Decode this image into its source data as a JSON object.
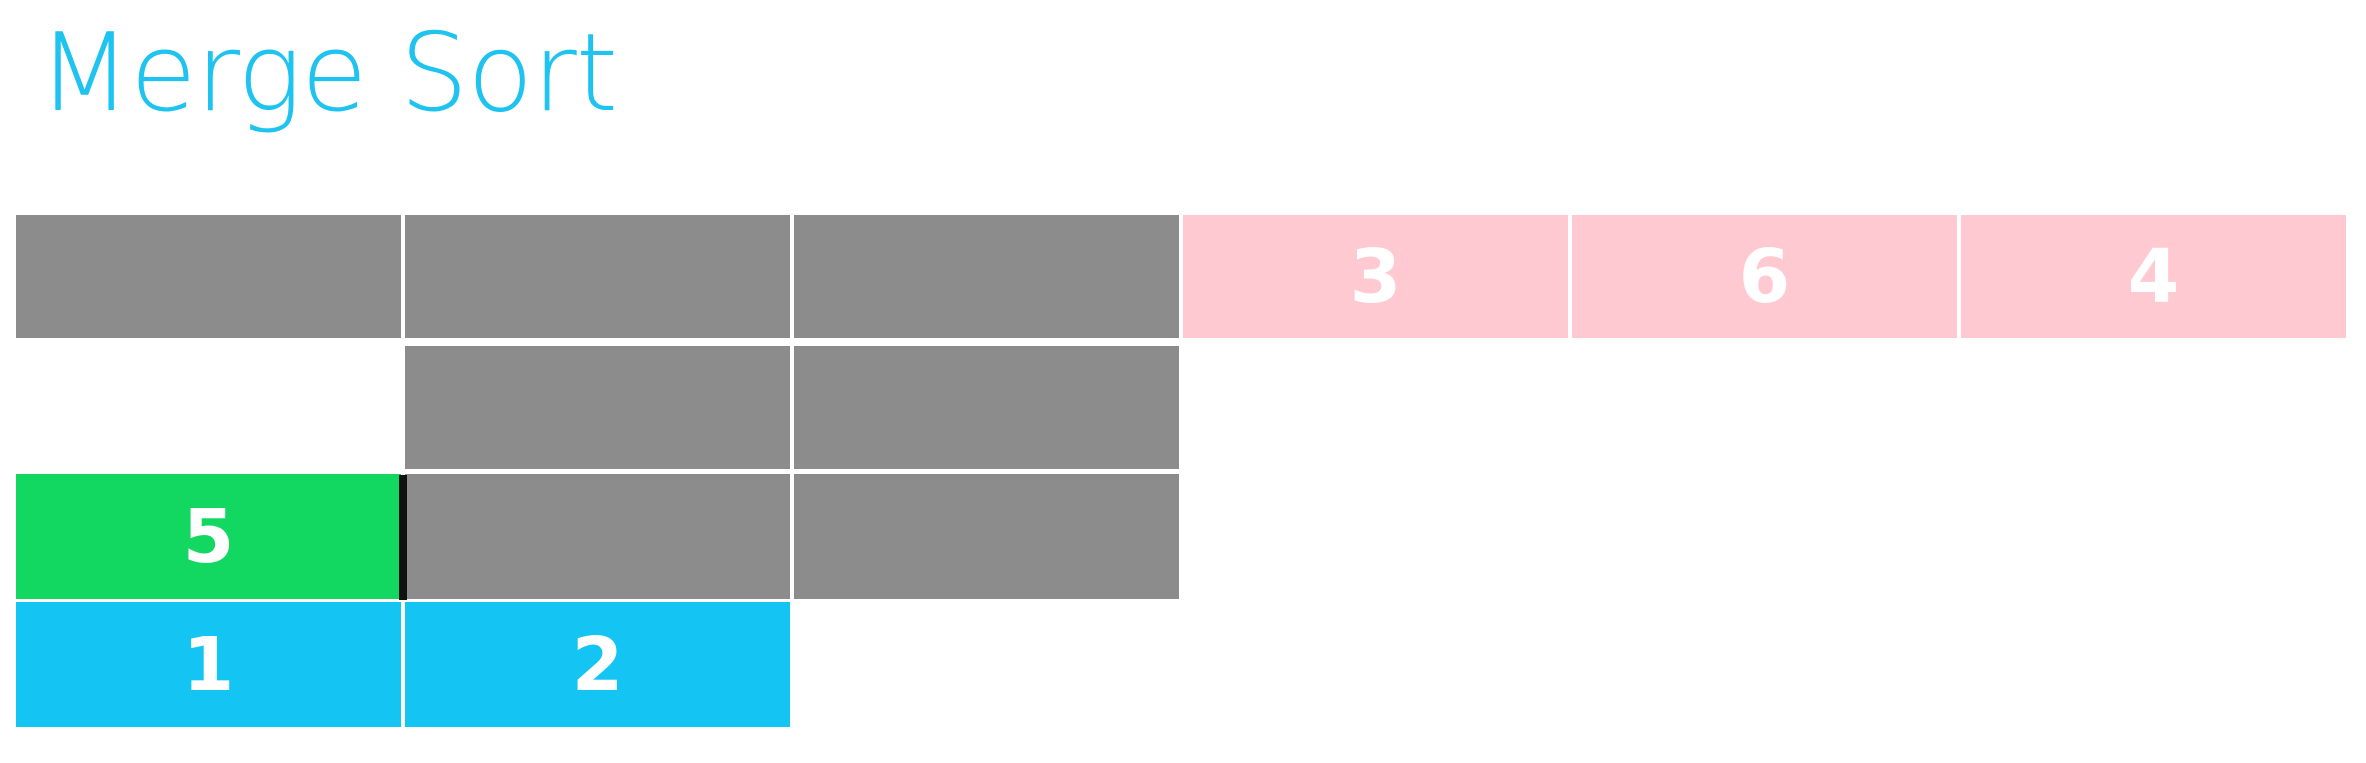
{
  "title": "Merge Sort",
  "colors": {
    "title": "#1ec3ef",
    "gray": "#8d8c8d",
    "pink": "#ffc9d1",
    "green": "#12d862",
    "blue": "#14c5f3"
  },
  "rows": [
    {
      "name": "array-row",
      "cells": [
        {
          "label": "",
          "color": "gray"
        },
        {
          "label": "",
          "color": "gray"
        },
        {
          "label": "",
          "color": "gray"
        },
        {
          "label": "3",
          "color": "pink"
        },
        {
          "label": "6",
          "color": "pink"
        },
        {
          "label": "4",
          "color": "pink"
        }
      ]
    },
    {
      "name": "split-row",
      "cells": [
        null,
        {
          "label": "",
          "color": "gray"
        },
        {
          "label": "",
          "color": "gray"
        }
      ]
    },
    {
      "name": "merge-row",
      "cells": [
        {
          "label": "5",
          "color": "green"
        },
        {
          "label": "",
          "color": "gray"
        },
        {
          "label": "",
          "color": "gray"
        }
      ]
    },
    {
      "name": "output-row",
      "cells": [
        {
          "label": "1",
          "color": "blue"
        },
        {
          "label": "2",
          "color": "blue"
        }
      ]
    }
  ]
}
